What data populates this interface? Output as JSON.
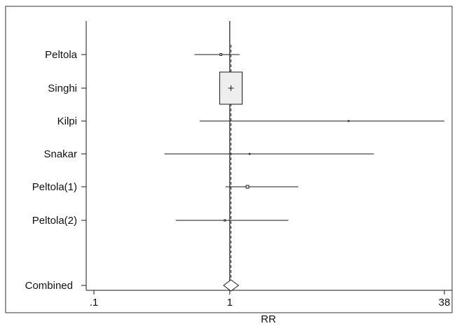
{
  "chart_data": {
    "type": "forest",
    "xlabel": "RR",
    "x_scale": "log",
    "xlim": [
      0.1,
      38
    ],
    "x_ticks": [
      {
        "value": 0.1,
        "label": ".1"
      },
      {
        "value": 1,
        "label": "1"
      },
      {
        "value": 38,
        "label": "38"
      }
    ],
    "null_line": 1,
    "studies": [
      {
        "name": "Peltola",
        "rr": 0.86,
        "ci": [
          0.55,
          1.18
        ],
        "weight": 0.02
      },
      {
        "name": "Singhi",
        "rr": 1.02,
        "ci": [
          1.01,
          1.03
        ],
        "weight": 1.0
      },
      {
        "name": "Kilpi",
        "rr": 7.5,
        "ci": [
          0.6,
          38
        ],
        "weight": 0.005
      },
      {
        "name": "Snakar",
        "rr": 1.4,
        "ci": [
          0.33,
          11.5
        ],
        "weight": 0.005
      },
      {
        "name": "Peltola(1)",
        "rr": 1.35,
        "ci": [
          0.93,
          3.2
        ],
        "weight": 0.04
      },
      {
        "name": "Peltola(2)",
        "rr": 0.92,
        "ci": [
          0.4,
          2.7
        ],
        "weight": 0.01
      }
    ],
    "combined": {
      "name": "Combined",
      "rr": 1.02,
      "ci": [
        0.9,
        1.16
      ]
    },
    "colors": {
      "line": "#1a1a1a",
      "box_fill": "#eeeeee",
      "frame": "#333333"
    }
  }
}
